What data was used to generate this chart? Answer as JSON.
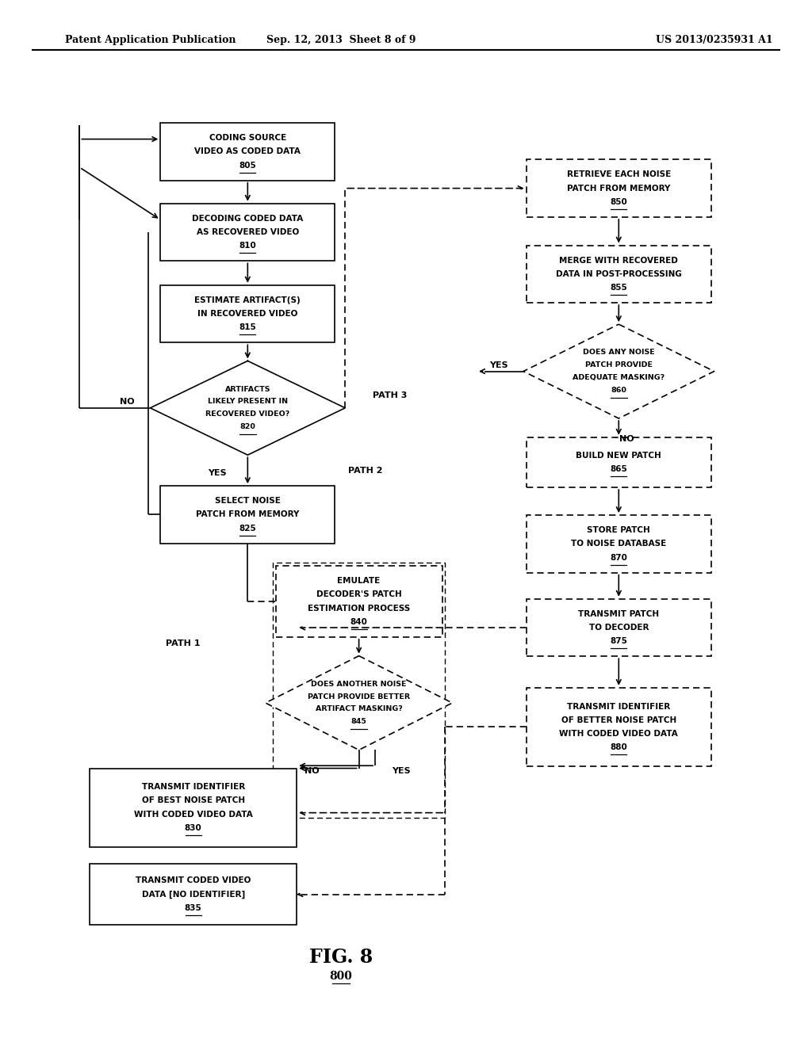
{
  "header_left": "Patent Application Publication",
  "header_center": "Sep. 12, 2013  Sheet 8 of 9",
  "header_right": "US 2013/0235931 A1",
  "background_color": "#ffffff"
}
